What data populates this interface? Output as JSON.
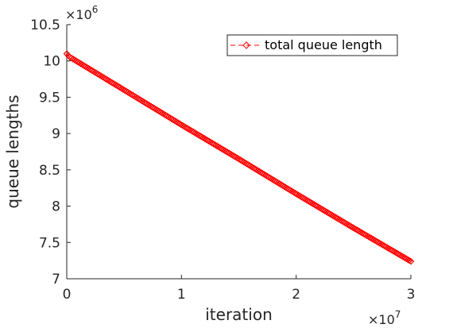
{
  "chart_data": {
    "type": "line",
    "xlabel": "iteration",
    "ylabel": "queue lengths",
    "x_multiplier": "×10",
    "x_multiplier_exponent": "7",
    "y_multiplier": "×10",
    "y_multiplier_exponent": "6",
    "xlim": [
      0,
      3
    ],
    "ylim": [
      7,
      10.5
    ],
    "x_ticks": [
      0,
      1,
      2,
      3
    ],
    "x_tick_labels": [
      "0",
      "1",
      "2",
      "3"
    ],
    "y_ticks": [
      7,
      7.5,
      8,
      8.5,
      9,
      9.5,
      10,
      10.5
    ],
    "y_tick_labels": [
      "7",
      "7.5",
      "8",
      "8.5",
      "9",
      "9.5",
      "10",
      "10.5"
    ],
    "grid": false,
    "legend_position": "top-right",
    "series": [
      {
        "name": "total queue length",
        "color": "#ff0000",
        "marker": "diamond",
        "line_style": "dashed",
        "x": [
          0,
          0.02,
          0.5,
          1.0,
          1.5,
          2.0,
          2.5,
          3.0
        ],
        "y": [
          10.1,
          10.06,
          9.6,
          9.12,
          8.65,
          8.17,
          7.7,
          7.24
        ]
      }
    ]
  }
}
